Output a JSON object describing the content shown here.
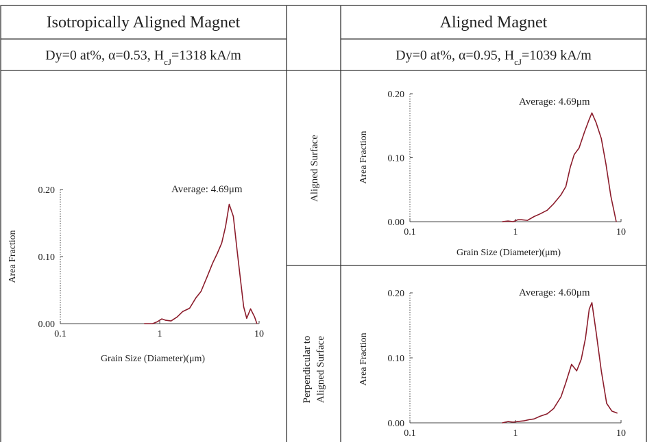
{
  "headers": {
    "left_title": "Isotropically Aligned Magnet",
    "right_title": "Aligned Magnet",
    "left_cond_main": "Dy=0 at%, α=0.53, H",
    "left_cond_sub": "cJ",
    "left_cond_tail": "=1318 kA/m",
    "right_cond_main": "Dy=0 at%, α=0.95, H",
    "right_cond_sub": "cJ",
    "right_cond_tail": "=1039 kA/m"
  },
  "row_labels": {
    "aligned_surface": "Aligned Surface",
    "perpendicular_line1": "Perpendicular to",
    "perpendicular_line2": "Aligned Surface"
  },
  "colors": {
    "curve": "#8b1c2b",
    "grid_line": "#333333",
    "axis": "#444444"
  },
  "chart_data": [
    {
      "type": "line",
      "panel": "isotropic",
      "xscale": "log",
      "xlim": [
        0.1,
        10
      ],
      "ylim": [
        0,
        0.2
      ],
      "xticks": [
        "0.1",
        "1",
        "10"
      ],
      "yticks": [
        "0.00",
        "0.10",
        "0.20"
      ],
      "xlabel": "Grain Size (Diameter)(μm)",
      "ylabel": "Area Fraction",
      "annotation": "Average: 4.69μm",
      "x": [
        0.7,
        0.85,
        0.95,
        1.05,
        1.15,
        1.3,
        1.5,
        1.7,
        2.0,
        2.3,
        2.6,
        3.0,
        3.4,
        3.8,
        4.2,
        4.6,
        5.0,
        5.5,
        6.0,
        6.5,
        7.0,
        7.5,
        8.2,
        9.0,
        9.5
      ],
      "y": [
        0.0,
        0.0,
        0.003,
        0.007,
        0.005,
        0.004,
        0.01,
        0.018,
        0.023,
        0.038,
        0.048,
        0.07,
        0.09,
        0.105,
        0.12,
        0.145,
        0.178,
        0.16,
        0.11,
        0.065,
        0.025,
        0.008,
        0.022,
        0.01,
        0.0
      ]
    },
    {
      "type": "line",
      "panel": "aligned_surface",
      "xscale": "log",
      "xlim": [
        0.1,
        10
      ],
      "ylim": [
        0,
        0.2
      ],
      "xticks": [
        "0.1",
        "1",
        "10"
      ],
      "yticks": [
        "0.00",
        "0.10",
        "0.20"
      ],
      "xlabel": "Grain Size (Diameter)(μm)",
      "ylabel": "Area Fraction",
      "annotation": "Average: 4.69μm",
      "x": [
        0.75,
        0.85,
        0.95,
        1.05,
        1.15,
        1.3,
        1.5,
        1.7,
        2.0,
        2.3,
        2.7,
        3.0,
        3.3,
        3.6,
        4.0,
        4.5,
        5.0,
        5.3,
        5.8,
        6.5,
        7.2,
        8.0,
        9.0
      ],
      "y": [
        0.0,
        0.001,
        0.0,
        0.003,
        0.003,
        0.002,
        0.008,
        0.012,
        0.018,
        0.028,
        0.042,
        0.055,
        0.085,
        0.105,
        0.115,
        0.14,
        0.16,
        0.17,
        0.155,
        0.13,
        0.09,
        0.04,
        0.0
      ]
    },
    {
      "type": "line",
      "panel": "perpendicular",
      "xscale": "log",
      "xlim": [
        0.1,
        10
      ],
      "ylim": [
        0,
        0.2
      ],
      "xticks": [
        "0.1",
        "1",
        "10"
      ],
      "yticks": [
        "0.00",
        "0.10",
        "0.20"
      ],
      "ylabel": "Area Fraction",
      "annotation": "Average: 4.60μm",
      "x": [
        0.75,
        0.85,
        0.95,
        1.05,
        1.2,
        1.35,
        1.5,
        1.7,
        2.0,
        2.3,
        2.7,
        3.0,
        3.4,
        3.8,
        4.2,
        4.6,
        5.0,
        5.3,
        5.8,
        6.5,
        7.3,
        8.2,
        9.2
      ],
      "y": [
        0.0,
        0.002,
        0.001,
        0.002,
        0.003,
        0.005,
        0.006,
        0.01,
        0.014,
        0.022,
        0.04,
        0.062,
        0.09,
        0.08,
        0.098,
        0.13,
        0.175,
        0.185,
        0.14,
        0.08,
        0.03,
        0.018,
        0.015
      ]
    }
  ]
}
